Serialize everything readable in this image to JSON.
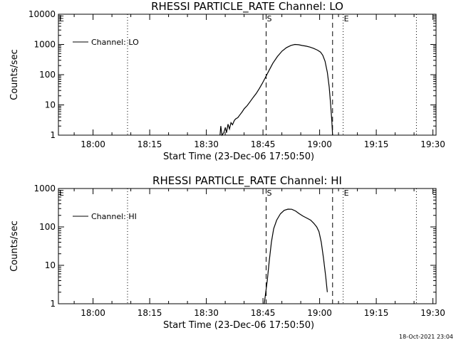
{
  "timestamp": "18-Oct-2021 23:04",
  "chart_data": [
    {
      "type": "line",
      "title": "RHESSI PARTICLE_RATE Channel: LO",
      "xlabel": "Start Time (23-Dec-06 17:50:50)",
      "ylabel": "Counts/sec",
      "x_unit": "minutes after 17:50:50",
      "xlim": [
        0,
        100
      ],
      "ylim": [
        1,
        10000
      ],
      "yscale": "log",
      "x_ticks": [
        {
          "x": 9.17,
          "label": "18:00"
        },
        {
          "x": 24.17,
          "label": "18:15"
        },
        {
          "x": 39.17,
          "label": "18:30"
        },
        {
          "x": 54.17,
          "label": "18:45"
        },
        {
          "x": 69.17,
          "label": "19:00"
        },
        {
          "x": 84.17,
          "label": "19:15"
        },
        {
          "x": 99.17,
          "label": "19:30"
        }
      ],
      "y_ticks": [
        {
          "y": 1,
          "label": "1"
        },
        {
          "y": 10,
          "label": "10"
        },
        {
          "y": 100,
          "label": "100"
        },
        {
          "y": 1000,
          "label": "1000"
        },
        {
          "y": 10000,
          "label": "10000"
        }
      ],
      "legend": {
        "position": "top-left",
        "entries": [
          "Channel: LO"
        ]
      },
      "vlines": [
        {
          "x": 0,
          "style": "dotted",
          "label": "E"
        },
        {
          "x": 18.3,
          "style": "dotted",
          "label": ""
        },
        {
          "x": 55.0,
          "style": "dashed",
          "label": "S"
        },
        {
          "x": 72.6,
          "style": "dashed",
          "label": ""
        },
        {
          "x": 75.4,
          "style": "dotted",
          "label": "E"
        },
        {
          "x": 94.8,
          "style": "dotted",
          "label": ""
        }
      ],
      "series": [
        {
          "name": "Channel: LO",
          "points": [
            [
              42.8,
              1.0
            ],
            [
              43.0,
              2.0
            ],
            [
              43.3,
              1.0
            ],
            [
              43.8,
              1.2
            ],
            [
              44.2,
              1.8
            ],
            [
              44.5,
              1.2
            ],
            [
              44.9,
              2.3
            ],
            [
              45.3,
              1.6
            ],
            [
              45.7,
              2.6
            ],
            [
              46.1,
              2.2
            ],
            [
              46.6,
              3.1
            ],
            [
              47.0,
              3.5
            ],
            [
              47.5,
              3.8
            ],
            [
              48.0,
              4.6
            ],
            [
              48.6,
              5.8
            ],
            [
              49.2,
              7.5
            ],
            [
              50.0,
              9.5
            ],
            [
              50.8,
              13
            ],
            [
              51.6,
              18
            ],
            [
              52.4,
              24
            ],
            [
              53.2,
              35
            ],
            [
              54.0,
              52
            ],
            [
              54.8,
              80
            ],
            [
              55.8,
              140
            ],
            [
              56.8,
              240
            ],
            [
              58.0,
              400
            ],
            [
              59.2,
              600
            ],
            [
              60.4,
              790
            ],
            [
              61.6,
              930
            ],
            [
              62.6,
              1000
            ],
            [
              63.6,
              980
            ],
            [
              64.6,
              920
            ],
            [
              65.6,
              880
            ],
            [
              66.6,
              820
            ],
            [
              67.6,
              740
            ],
            [
              68.6,
              650
            ],
            [
              69.4,
              560
            ],
            [
              70.0,
              440
            ],
            [
              70.6,
              280
            ],
            [
              71.2,
              120
            ],
            [
              71.7,
              40
            ],
            [
              72.1,
              10
            ],
            [
              72.4,
              3
            ],
            [
              72.6,
              1.0
            ]
          ]
        }
      ]
    },
    {
      "type": "line",
      "title": "RHESSI PARTICLE_RATE Channel: HI",
      "xlabel": "Start Time (23-Dec-06 17:50:50)",
      "ylabel": "Counts/sec",
      "x_unit": "minutes after 17:50:50",
      "xlim": [
        0,
        100
      ],
      "ylim": [
        1,
        1000
      ],
      "yscale": "log",
      "x_ticks": [
        {
          "x": 9.17,
          "label": "18:00"
        },
        {
          "x": 24.17,
          "label": "18:15"
        },
        {
          "x": 39.17,
          "label": "18:30"
        },
        {
          "x": 54.17,
          "label": "18:45"
        },
        {
          "x": 69.17,
          "label": "19:00"
        },
        {
          "x": 84.17,
          "label": "19:15"
        },
        {
          "x": 99.17,
          "label": "19:30"
        }
      ],
      "y_ticks": [
        {
          "y": 1,
          "label": "1"
        },
        {
          "y": 10,
          "label": "10"
        },
        {
          "y": 100,
          "label": "100"
        },
        {
          "y": 1000,
          "label": "1000"
        }
      ],
      "legend": {
        "position": "top-left",
        "entries": [
          "Channel: HI"
        ]
      },
      "vlines": [
        {
          "x": 0,
          "style": "dotted",
          "label": "E"
        },
        {
          "x": 18.3,
          "style": "dotted",
          "label": ""
        },
        {
          "x": 55.0,
          "style": "dashed",
          "label": "S"
        },
        {
          "x": 72.6,
          "style": "dashed",
          "label": ""
        },
        {
          "x": 75.4,
          "style": "dotted",
          "label": "E"
        },
        {
          "x": 94.8,
          "style": "dotted",
          "label": ""
        }
      ],
      "series": [
        {
          "name": "Channel: HI",
          "points": [
            [
              54.5,
              1.0
            ],
            [
              54.9,
              2.0
            ],
            [
              55.3,
              4.0
            ],
            [
              55.8,
              12
            ],
            [
              56.4,
              40
            ],
            [
              57.0,
              90
            ],
            [
              57.8,
              150
            ],
            [
              58.8,
              220
            ],
            [
              59.8,
              270
            ],
            [
              60.8,
              290
            ],
            [
              61.8,
              288
            ],
            [
              62.8,
              260
            ],
            [
              63.8,
              220
            ],
            [
              64.8,
              190
            ],
            [
              65.8,
              170
            ],
            [
              66.8,
              150
            ],
            [
              67.6,
              125
            ],
            [
              68.4,
              100
            ],
            [
              69.0,
              75
            ],
            [
              69.6,
              40
            ],
            [
              70.2,
              15
            ],
            [
              70.8,
              5
            ],
            [
              71.2,
              2.0
            ]
          ]
        }
      ]
    }
  ]
}
